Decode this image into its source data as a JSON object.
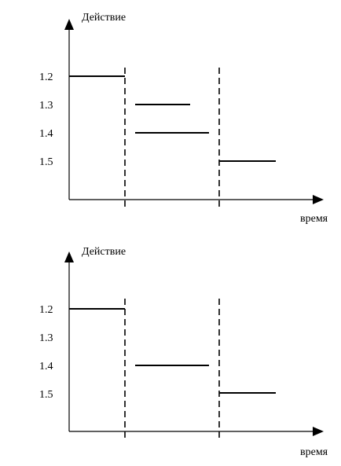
{
  "diagrams": [
    {
      "y_axis_label": "Действие",
      "x_axis_label": "время",
      "levels": [
        "1.2",
        "1.3",
        "1.4",
        "1.5"
      ]
    },
    {
      "y_axis_label": "Действие",
      "x_axis_label": "время",
      "levels": [
        "1.2",
        "1.3",
        "1.4",
        "1.5"
      ]
    }
  ]
}
